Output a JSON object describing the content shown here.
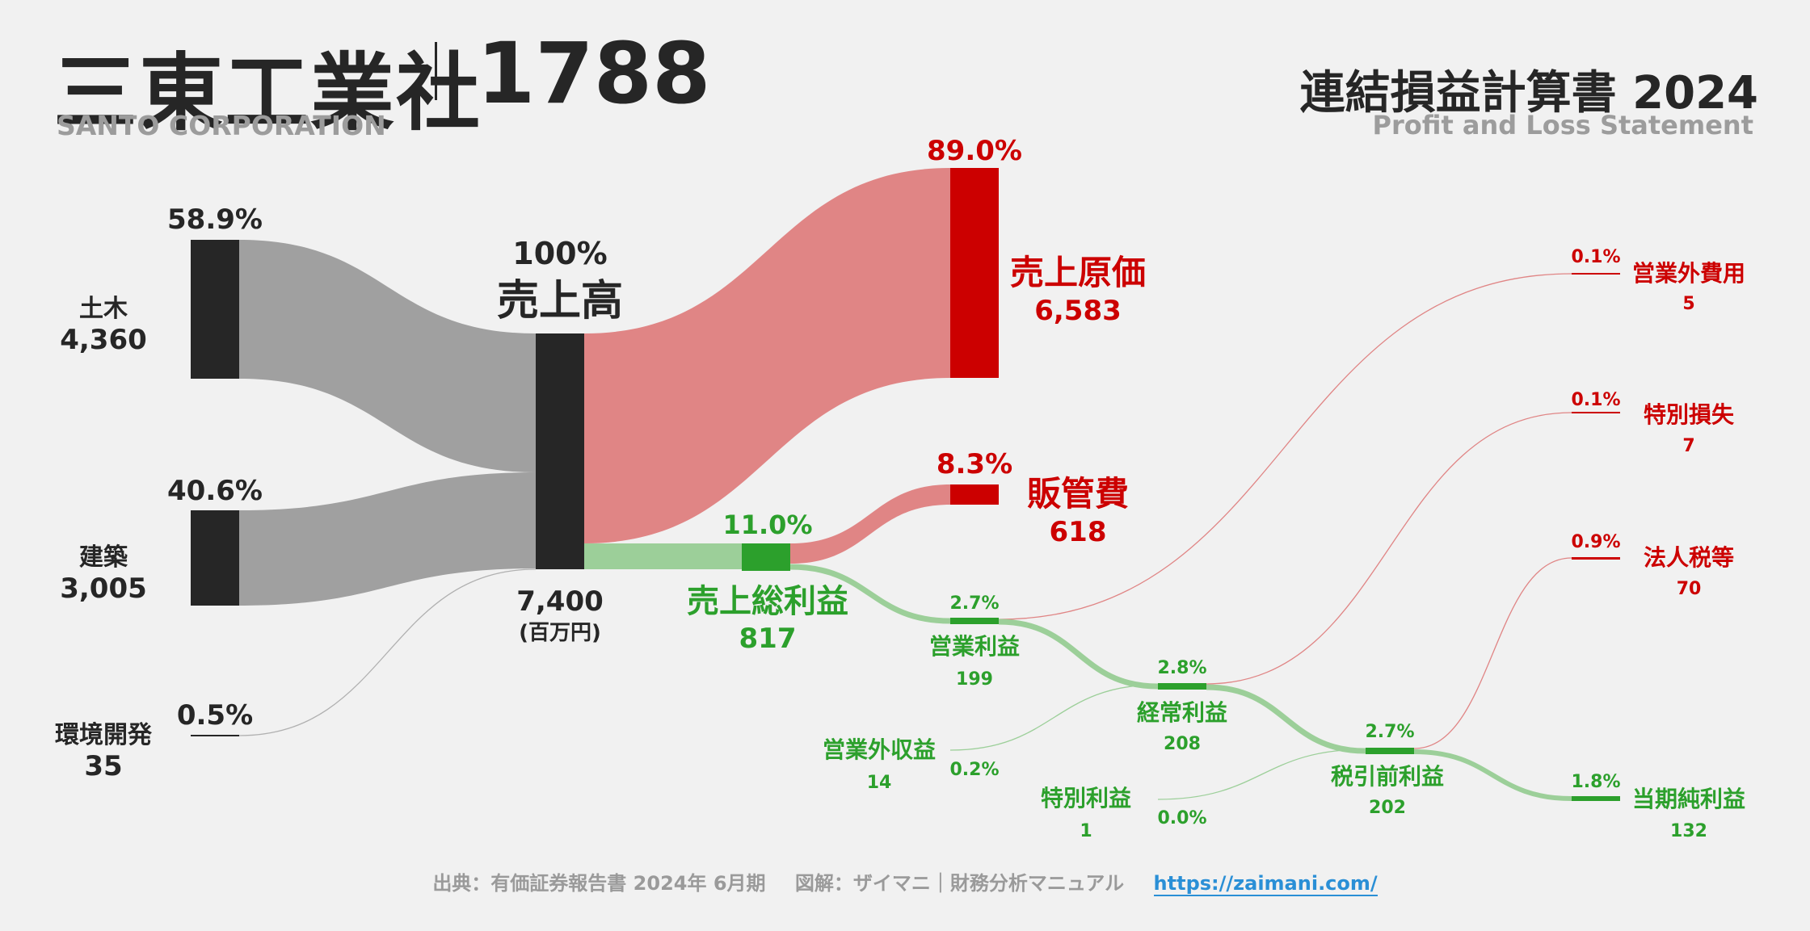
{
  "header": {
    "company": "三東工業社",
    "code": "1788",
    "company_en": "SANTO CORPORATION",
    "statement": "連結損益計算書 2024",
    "statement_en": "Profit and Loss Statement"
  },
  "footer": {
    "source": "出典：有価証券報告書 2024年 6月期",
    "credit": "図解：ザイマニ｜財務分析マニュアル",
    "url": "https://zaimani.com/"
  },
  "colors": {
    "dark": "#262626",
    "gray_flow": "#a0a0a0",
    "cost_red": "#cc0000",
    "cost_flow": "#e08585",
    "profit_green": "#2ca02c",
    "profit_flow": "#9ccf99"
  },
  "chart_data": {
    "type": "sankey",
    "unit": "(百万円)",
    "nodes": [
      {
        "id": "doboku",
        "label": "土木",
        "value": "4,360",
        "pct": "58.9%"
      },
      {
        "id": "kenchiku",
        "label": "建築",
        "value": "3,005",
        "pct": "40.6%"
      },
      {
        "id": "kankyo",
        "label": "環境開発",
        "value": "35",
        "pct": "0.5%"
      },
      {
        "id": "revenue",
        "label": "売上高",
        "value": "7,400",
        "pct": "100%"
      },
      {
        "id": "cogs",
        "label": "売上原価",
        "value": "6,583",
        "pct": "89.0%"
      },
      {
        "id": "gross",
        "label": "売上総利益",
        "value": "817",
        "pct": "11.0%"
      },
      {
        "id": "sga",
        "label": "販管費",
        "value": "618",
        "pct": "8.3%"
      },
      {
        "id": "op",
        "label": "営業利益",
        "value": "199",
        "pct": "2.7%"
      },
      {
        "id": "nonop_inc",
        "label": "営業外収益",
        "value": "14",
        "pct": "0.2%"
      },
      {
        "id": "nonop_exp",
        "label": "営業外費用",
        "value": "5",
        "pct": "0.1%"
      },
      {
        "id": "ordinary",
        "label": "経常利益",
        "value": "208",
        "pct": "2.8%"
      },
      {
        "id": "sp_gain",
        "label": "特別利益",
        "value": "1",
        "pct": "0.0%"
      },
      {
        "id": "sp_loss",
        "label": "特別損失",
        "value": "7",
        "pct": "0.1%"
      },
      {
        "id": "pretax",
        "label": "税引前利益",
        "value": "202",
        "pct": "2.7%"
      },
      {
        "id": "tax",
        "label": "法人税等",
        "value": "70",
        "pct": "0.9%"
      },
      {
        "id": "net",
        "label": "当期純利益",
        "value": "132",
        "pct": "1.8%"
      }
    ],
    "links": [
      {
        "source": "doboku",
        "target": "revenue",
        "value": 4360
      },
      {
        "source": "kenchiku",
        "target": "revenue",
        "value": 3005
      },
      {
        "source": "kankyo",
        "target": "revenue",
        "value": 35
      },
      {
        "source": "revenue",
        "target": "cogs",
        "value": 6583
      },
      {
        "source": "revenue",
        "target": "gross",
        "value": 817
      },
      {
        "source": "gross",
        "target": "sga",
        "value": 618
      },
      {
        "source": "gross",
        "target": "op",
        "value": 199
      },
      {
        "source": "op",
        "target": "nonop_exp",
        "value": 5
      },
      {
        "source": "op",
        "target": "ordinary",
        "value": 194
      },
      {
        "source": "nonop_inc",
        "target": "ordinary",
        "value": 14
      },
      {
        "source": "ordinary",
        "target": "sp_loss",
        "value": 7
      },
      {
        "source": "ordinary",
        "target": "pretax",
        "value": 201
      },
      {
        "source": "sp_gain",
        "target": "pretax",
        "value": 1
      },
      {
        "source": "pretax",
        "target": "tax",
        "value": 70
      },
      {
        "source": "pretax",
        "target": "net",
        "value": 132
      }
    ]
  }
}
